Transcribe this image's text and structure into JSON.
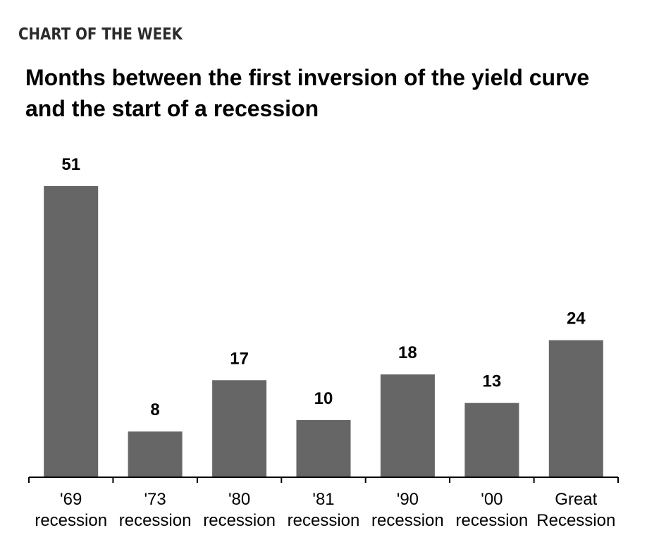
{
  "kicker": "CHART OF THE WEEK",
  "chart_data": {
    "type": "bar",
    "title": "Months between the first inversion of the yield curve and the start of a recession",
    "categories": [
      [
        "'69",
        "recession"
      ],
      [
        "'73",
        "recession"
      ],
      [
        "'80",
        "recession"
      ],
      [
        "'81",
        "recession"
      ],
      [
        "'90",
        "recession"
      ],
      [
        "'00",
        "recession"
      ],
      [
        "Great",
        "Recession"
      ]
    ],
    "values": [
      51,
      8,
      17,
      10,
      18,
      13,
      24
    ],
    "data_labels": [
      "51",
      "8",
      "17",
      "10",
      "18",
      "13",
      "24"
    ],
    "ylim": [
      0,
      55
    ],
    "xlabel": "",
    "ylabel": "",
    "grid": false,
    "bar_color": "#666666",
    "axis_color": "#000000"
  }
}
